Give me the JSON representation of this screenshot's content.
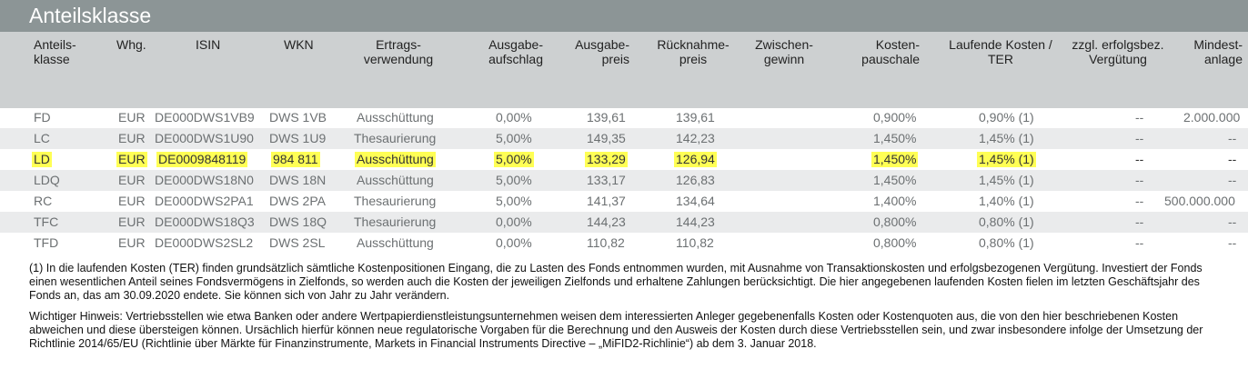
{
  "title": "Anteilsklasse",
  "headers": {
    "anteilsklasse": [
      "Anteils-",
      "klasse"
    ],
    "whg": "Whg.",
    "isin": "ISIN",
    "wkn": "WKN",
    "ertrag": [
      "Ertrags-",
      "verwendung"
    ],
    "ausgabeaufschlag": [
      "Ausgabe-",
      "aufschlag"
    ],
    "ausgabepreis": [
      "Ausgabe-",
      "preis"
    ],
    "ruecknahmepreis": [
      "Rücknahme-",
      "preis"
    ],
    "zwischengewinn": [
      "Zwischen-",
      "gewinn"
    ],
    "kostenpauschale": [
      "Kosten-",
      "pauschale"
    ],
    "ter": [
      "Laufende Kosten /",
      "TER"
    ],
    "erfolg": [
      "zzgl. erfolgsbez.",
      "Vergütung"
    ],
    "mindestanlage": [
      "Mindest-",
      "anlage"
    ]
  },
  "rows": [
    {
      "klasse": "FD",
      "whg": "EUR",
      "isin": "DE000DWS1VB9",
      "wkn": "DWS 1VB",
      "ertrag": "Ausschüttung",
      "aufschlag": "0,00%",
      "ausgabe": "139,61",
      "ruecknahme": "139,61",
      "zwischen": "",
      "pauschale": "0,900%",
      "ter": "0,90% (1)",
      "erfolg": "--",
      "mindest": "2.000.000",
      "highlight": false
    },
    {
      "klasse": "LC",
      "whg": "EUR",
      "isin": "DE000DWS1U90",
      "wkn": "DWS 1U9",
      "ertrag": "Thesaurierung",
      "aufschlag": "5,00%",
      "ausgabe": "149,35",
      "ruecknahme": "142,23",
      "zwischen": "",
      "pauschale": "1,450%",
      "ter": "1,45% (1)",
      "erfolg": "--",
      "mindest": "--",
      "highlight": false
    },
    {
      "klasse": "LD",
      "whg": "EUR",
      "isin": "DE0009848119",
      "wkn": "984 811",
      "ertrag": "Ausschüttung",
      "aufschlag": "5,00%",
      "ausgabe": "133,29",
      "ruecknahme": "126,94",
      "zwischen": "",
      "pauschale": "1,450%",
      "ter": "1,45% (1)",
      "erfolg": "--",
      "mindest": "--",
      "highlight": true
    },
    {
      "klasse": "LDQ",
      "whg": "EUR",
      "isin": "DE000DWS18N0",
      "wkn": "DWS 18N",
      "ertrag": "Ausschüttung",
      "aufschlag": "5,00%",
      "ausgabe": "133,17",
      "ruecknahme": "126,83",
      "zwischen": "",
      "pauschale": "1,450%",
      "ter": "1,45% (1)",
      "erfolg": "--",
      "mindest": "--",
      "highlight": false
    },
    {
      "klasse": "RC",
      "whg": "EUR",
      "isin": "DE000DWS2PA1",
      "wkn": "DWS 2PA",
      "ertrag": "Thesaurierung",
      "aufschlag": "5,00%",
      "ausgabe": "141,37",
      "ruecknahme": "134,64",
      "zwischen": "",
      "pauschale": "1,400%",
      "ter": "1,40% (1)",
      "erfolg": "--",
      "mindest": "500.000.000",
      "highlight": false
    },
    {
      "klasse": "TFC",
      "whg": "EUR",
      "isin": "DE000DWS18Q3",
      "wkn": "DWS 18Q",
      "ertrag": "Thesaurierung",
      "aufschlag": "0,00%",
      "ausgabe": "144,23",
      "ruecknahme": "144,23",
      "zwischen": "",
      "pauschale": "0,800%",
      "ter": "0,80% (1)",
      "erfolg": "--",
      "mindest": "--",
      "highlight": false
    },
    {
      "klasse": "TFD",
      "whg": "EUR",
      "isin": "DE000DWS2SL2",
      "wkn": "DWS 2SL",
      "ertrag": "Ausschüttung",
      "aufschlag": "0,00%",
      "ausgabe": "110,82",
      "ruecknahme": "110,82",
      "zwischen": "",
      "pauschale": "0,800%",
      "ter": "0,80% (1)",
      "erfolg": "--",
      "mindest": "--",
      "highlight": false
    }
  ],
  "notes": {
    "footnote": "(1) In die laufenden Kosten (TER) finden grundsätzlich sämtliche Kostenpositionen Eingang, die zu Lasten des Fonds entnommen wurden, mit Ausnahme von Transaktionskosten und erfolgsbezogenen Vergütung. Investiert der Fonds einen wesentlichen Anteil seines Fondsvermögens in Zielfonds, so werden auch die Kosten der jeweiligen Zielfonds und erhaltene Zahlungen berücksichtigt. Die hier angegebenen laufenden Kosten fielen im letzten Geschäftsjahr des Fonds an, das am 30.09.2020 endete. Sie können sich von Jahr zu Jahr verändern.",
    "hinweis": "Wichtiger Hinweis: Vertriebsstellen wie etwa Banken oder andere Wertpapierdienstleistungsunternehmen weisen dem interessierten Anleger gegebenenfalls Kosten oder Kostenquoten aus, die von den hier beschriebenen Kosten abweichen und diese übersteigen können. Ursächlich hierfür können neue regulatorische Vorgaben für die Berechnung und den Ausweis der Kosten durch diese Vertriebsstellen sein, und zwar insbesondere infolge der Umsetzung der Richtlinie 2014/65/EU (Richtlinie über Märkte für Finanzinstrumente, Markets in Financial Instruments Directive – „MiFID2-Richlinie“) ab dem 3. Januar 2018."
  }
}
